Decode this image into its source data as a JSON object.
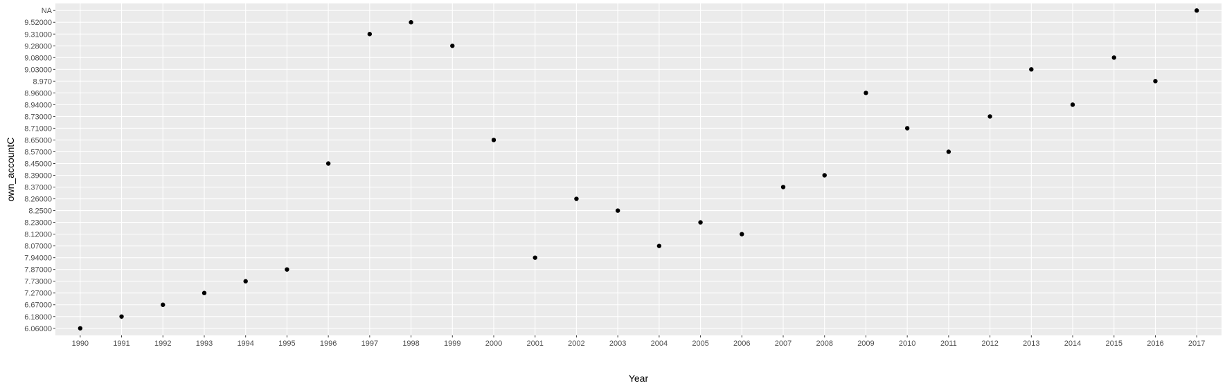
{
  "chart_data": {
    "type": "scatter",
    "title": "",
    "xlabel": "Year",
    "ylabel": "own_accountC",
    "y_axis_kind": "discrete",
    "grid": true,
    "legend": "none",
    "x_categories": [
      "1990",
      "1991",
      "1992",
      "1993",
      "1994",
      "1995",
      "1996",
      "1997",
      "1998",
      "1999",
      "2000",
      "2001",
      "2002",
      "2003",
      "2004",
      "2005",
      "2006",
      "2007",
      "2008",
      "2009",
      "2010",
      "2011",
      "2012",
      "2013",
      "2014",
      "2015",
      "2016",
      "2017"
    ],
    "y_categories": [
      "6.06000",
      "6.18000",
      "6.67000",
      "7.27000",
      "7.73000",
      "7.87000",
      "7.94000",
      "8.07000",
      "8.12000",
      "8.23000",
      "8.2500",
      "8.26000",
      "8.37000",
      "8.39000",
      "8.45000",
      "8.57000",
      "8.65000",
      "8.71000",
      "8.73000",
      "8.94000",
      "8.96000",
      "8.970",
      "9.03000",
      "9.08000",
      "9.28000",
      "9.31000",
      "9.52000",
      "NA"
    ],
    "points": [
      {
        "x": "1990",
        "y": "6.06000"
      },
      {
        "x": "1991",
        "y": "6.18000"
      },
      {
        "x": "1992",
        "y": "6.67000"
      },
      {
        "x": "1993",
        "y": "7.27000"
      },
      {
        "x": "1994",
        "y": "7.73000"
      },
      {
        "x": "1995",
        "y": "7.87000"
      },
      {
        "x": "1996",
        "y": "8.45000"
      },
      {
        "x": "1997",
        "y": "9.31000"
      },
      {
        "x": "1998",
        "y": "9.52000"
      },
      {
        "x": "1999",
        "y": "9.28000"
      },
      {
        "x": "2000",
        "y": "8.65000"
      },
      {
        "x": "2001",
        "y": "7.94000"
      },
      {
        "x": "2002",
        "y": "8.26000"
      },
      {
        "x": "2003",
        "y": "8.2500"
      },
      {
        "x": "2004",
        "y": "8.07000"
      },
      {
        "x": "2005",
        "y": "8.23000"
      },
      {
        "x": "2006",
        "y": "8.12000"
      },
      {
        "x": "2007",
        "y": "8.37000"
      },
      {
        "x": "2008",
        "y": "8.39000"
      },
      {
        "x": "2009",
        "y": "8.96000"
      },
      {
        "x": "2010",
        "y": "8.71000"
      },
      {
        "x": "2011",
        "y": "8.57000"
      },
      {
        "x": "2012",
        "y": "8.73000"
      },
      {
        "x": "2013",
        "y": "9.03000"
      },
      {
        "x": "2014",
        "y": "8.94000"
      },
      {
        "x": "2015",
        "y": "9.08000"
      },
      {
        "x": "2016",
        "y": "8.970"
      },
      {
        "x": "2017",
        "y": "NA"
      }
    ],
    "colors": {
      "panel_background": "#ebebeb",
      "grid": "#ffffff",
      "point": "#000000",
      "tick_label": "#4d4d4d",
      "tick_mark": "#333333"
    }
  }
}
